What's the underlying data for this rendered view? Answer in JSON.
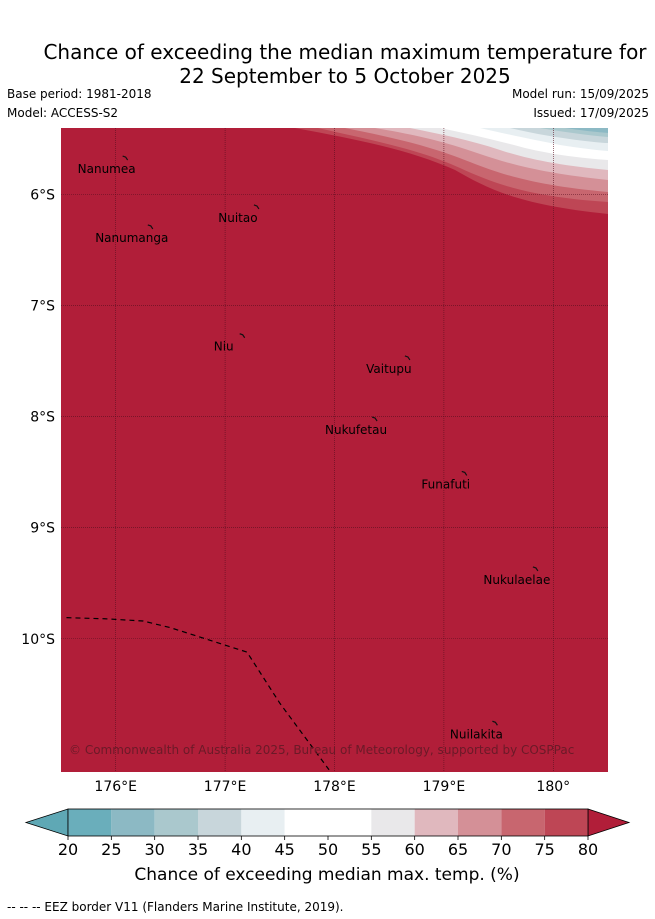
{
  "title": {
    "line1": "Chance of exceeding the median maximum temperature for",
    "line2": "22 September to 5 October 2025"
  },
  "meta": {
    "base_period": "Base period: 1981-2018",
    "model": "Model: ACCESS-S2",
    "model_run": "Model run: 15/09/2025",
    "issued": "Issued: 17/09/2025"
  },
  "map": {
    "extent": {
      "lon": [
        175.5,
        180.5
      ],
      "lat": [
        -11.2,
        -5.4
      ]
    },
    "fill_color": "#b11e39",
    "lon_ticks": [
      {
        "value": 176,
        "label": "176°E"
      },
      {
        "value": 177,
        "label": "177°E"
      },
      {
        "value": 178,
        "label": "178°E"
      },
      {
        "value": 179,
        "label": "179°E"
      },
      {
        "value": 180,
        "label": "180°"
      }
    ],
    "lat_ticks": [
      {
        "value": -6,
        "label": "6°S"
      },
      {
        "value": -7,
        "label": "7°S"
      },
      {
        "value": -8,
        "label": "8°S"
      },
      {
        "value": -9,
        "label": "9°S"
      },
      {
        "value": -10,
        "label": "10°S"
      }
    ],
    "islands": [
      {
        "name": "Nanumea",
        "lon": 176.1,
        "lat": -5.68
      },
      {
        "name": "Nuitao",
        "lon": 177.3,
        "lat": -6.12
      },
      {
        "name": "Nanumanga",
        "lon": 176.33,
        "lat": -6.3
      },
      {
        "name": "Niu",
        "lon": 177.17,
        "lat": -7.28
      },
      {
        "name": "Vaitupu",
        "lon": 178.68,
        "lat": -7.48
      },
      {
        "name": "Nukufetau",
        "lon": 178.38,
        "lat": -8.03
      },
      {
        "name": "Funafuti",
        "lon": 179.2,
        "lat": -8.52
      },
      {
        "name": "Nukulaelae",
        "lon": 179.85,
        "lat": -9.38
      },
      {
        "name": "Nuilakita",
        "lon": 179.48,
        "lat": -10.77
      }
    ],
    "eez_border": [
      {
        "lon": 175.55,
        "lat": -9.81
      },
      {
        "lon": 175.9,
        "lat": -9.82
      },
      {
        "lon": 176.25,
        "lat": -9.84
      },
      {
        "lon": 176.5,
        "lat": -9.9
      },
      {
        "lon": 177.2,
        "lat": -10.12
      },
      {
        "lon": 177.5,
        "lat": -10.58
      },
      {
        "lon": 177.95,
        "lat": -11.18
      }
    ],
    "copyright": "© Commonwealth of Australia 2025, Bureau of Meteorology, supported by COSPPac"
  },
  "colorbar": {
    "label": "Chance of exceeding median max. temp. (%)",
    "ticks": [
      "20",
      "25",
      "30",
      "35",
      "40",
      "45",
      "50",
      "55",
      "60",
      "65",
      "70",
      "75",
      "80"
    ],
    "under_color": "#5fa8b5",
    "over_color": "#b11e39",
    "bin_colors": [
      "#6aaebb",
      "#8cb9c4",
      "#aac8cd",
      "#c8d6db",
      "#e8eff2",
      "#ffffff",
      "#ffffff",
      "#e9e8ea",
      "#e0b8be",
      "#d49097",
      "#c8666f",
      "#be4655"
    ]
  },
  "footer": "-- -- -- EEZ border V11 (Flanders Marine Institute, 2019)."
}
